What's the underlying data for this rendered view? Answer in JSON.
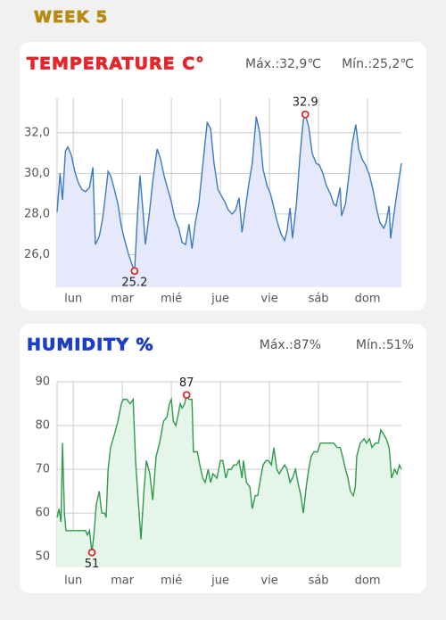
{
  "header": {
    "title": "WEEK 5"
  },
  "chart_data": [
    {
      "type": "line",
      "title": "Temperature C°",
      "max_label": "Máx.:32,9℃",
      "min_label": "Mín.:25,2℃",
      "x": [
        -0.33,
        -0.27,
        -0.22,
        -0.16,
        -0.11,
        -0.04,
        0.04,
        0.11,
        0.18,
        0.25,
        0.33,
        0.4,
        0.45,
        0.53,
        0.6,
        0.65,
        0.71,
        0.76,
        0.84,
        0.91,
        0.98,
        1.05,
        1.13,
        1.2,
        1.25,
        1.31,
        1.36,
        1.42,
        1.47,
        1.55,
        1.62,
        1.71,
        1.78,
        1.85,
        1.93,
        2,
        2.07,
        2.15,
        2.22,
        2.29,
        2.36,
        2.42,
        2.49,
        2.56,
        2.64,
        2.73,
        2.8,
        2.87,
        2.95,
        3.02,
        3.09,
        3.16,
        3.24,
        3.31,
        3.38,
        3.44,
        3.51,
        3.58,
        3.65,
        3.73,
        3.8,
        3.87,
        3.95,
        4.02,
        4.09,
        4.16,
        4.24,
        4.31,
        4.36,
        4.42,
        4.47,
        4.55,
        4.62,
        4.69,
        4.73,
        4.8,
        4.87,
        4.95,
        5.02,
        5.09,
        5.16,
        5.24,
        5.31,
        5.36,
        5.44,
        5.47,
        5.55,
        5.62,
        5.69,
        5.76,
        5.82,
        5.89,
        5.96,
        6.04,
        6.11,
        6.18,
        6.25,
        6.33,
        6.38,
        6.44,
        6.47,
        6.55,
        6.62,
        6.69
      ],
      "series": [
        {
          "color": "#3b7cc0",
          "fill": "#e6e8fb",
          "values": [
            28.1,
            30.0,
            28.7,
            31.1,
            31.3,
            30.9,
            30.0,
            29.5,
            29.2,
            29.1,
            29.3,
            30.3,
            26.5,
            26.9,
            27.8,
            28.8,
            30.1,
            29.9,
            29.2,
            28.5,
            27.4,
            26.7,
            26.0,
            25.5,
            25.2,
            28.0,
            29.9,
            28.2,
            26.5,
            28.0,
            29.6,
            31.2,
            30.7,
            29.9,
            29.2,
            28.6,
            27.8,
            27.3,
            26.6,
            26.5,
            27.5,
            26.3,
            27.6,
            28.5,
            30.4,
            32.5,
            32.2,
            30.5,
            29.2,
            28.9,
            28.6,
            28.2,
            28.0,
            28.2,
            28.8,
            27.1,
            28.3,
            29.5,
            30.5,
            32.8,
            32.0,
            30.2,
            29.4,
            29.0,
            28.3,
            27.6,
            27.0,
            26.7,
            27.2,
            28.3,
            26.8,
            28.5,
            30.8,
            32.6,
            32.9,
            32.3,
            31.0,
            30.5,
            30.4,
            30.0,
            29.4,
            29.0,
            28.5,
            28.4,
            29.3,
            27.9,
            28.5,
            29.9,
            31.5,
            32.4,
            31.2,
            30.7,
            30.4,
            29.9,
            29.2,
            28.3,
            27.6,
            27.3,
            27.6,
            28.4,
            26.8,
            28.2,
            29.4,
            30.5
          ]
        }
      ],
      "xlim": [
        -0.33,
        6.69
      ],
      "xticks": [
        {
          "value": 0,
          "label": "lun"
        },
        {
          "value": 1,
          "label": "mar"
        },
        {
          "value": 2,
          "label": "mié"
        },
        {
          "value": 3,
          "label": "jue"
        },
        {
          "value": 4,
          "label": "vie"
        },
        {
          "value": 5,
          "label": "sáb"
        },
        {
          "value": 6,
          "label": "dom"
        }
      ],
      "ylim": [
        24.4,
        33.7
      ],
      "yticks": [
        {
          "value": 26,
          "label": "26,0"
        },
        {
          "value": 28,
          "label": "28,0"
        },
        {
          "value": 30,
          "label": "30,0"
        },
        {
          "value": 32,
          "label": "32,0"
        }
      ],
      "grid": true,
      "title_color": "#e3262b"
    },
    {
      "type": "line",
      "title": "Humidity %",
      "max_label": "Máx.:87%",
      "min_label": "Mín.:51%",
      "x": [
        -0.33,
        -0.29,
        -0.25,
        -0.22,
        -0.18,
        -0.15,
        -0.04,
        0.11,
        0.25,
        0.29,
        0.33,
        0.38,
        0.42,
        0.47,
        0.53,
        0.58,
        0.64,
        0.67,
        0.71,
        0.76,
        0.84,
        0.91,
        0.98,
        1.02,
        1.09,
        1.16,
        1.22,
        1.27,
        1.33,
        1.38,
        1.44,
        1.49,
        1.56,
        1.62,
        1.69,
        1.76,
        1.84,
        1.91,
        1.96,
        2,
        2.04,
        2.09,
        2.13,
        2.18,
        2.22,
        2.27,
        2.31,
        2.36,
        2.42,
        2.45,
        2.53,
        2.58,
        2.64,
        2.69,
        2.75,
        2.8,
        2.85,
        2.93,
        3,
        3.05,
        3.11,
        3.16,
        3.22,
        3.27,
        3.33,
        3.38,
        3.44,
        3.47,
        3.53,
        3.6,
        3.65,
        3.71,
        3.76,
        3.82,
        3.87,
        3.93,
        3.98,
        4.04,
        4.09,
        4.15,
        4.2,
        4.25,
        4.31,
        4.36,
        4.42,
        4.47,
        4.53,
        4.58,
        4.64,
        4.69,
        4.75,
        4.8,
        4.85,
        4.91,
        4.98,
        5.04,
        5.09,
        5.16,
        5.24,
        5.31,
        5.38,
        5.44,
        5.49,
        5.55,
        5.6,
        5.65,
        5.71,
        5.75,
        5.78,
        5.85,
        5.93,
        5.98,
        6.04,
        6.09,
        6.16,
        6.22,
        6.27,
        6.33,
        6.38,
        6.44,
        6.49,
        6.55,
        6.6,
        6.65,
        6.69
      ],
      "series": [
        {
          "color": "#2f9a4c",
          "fill": "#e5f5ea",
          "values": [
            59,
            61,
            58,
            76,
            60,
            56,
            56,
            56,
            56,
            55,
            56,
            51,
            55,
            62,
            65,
            60,
            60,
            59,
            70,
            75,
            78,
            81,
            85,
            86,
            86,
            85,
            86,
            72,
            62,
            54,
            65,
            72,
            69,
            63,
            73,
            76,
            81,
            82,
            85,
            86,
            81,
            80,
            82,
            85,
            84,
            85,
            87,
            86,
            86,
            74,
            74,
            71,
            68,
            67,
            70,
            67,
            69,
            68,
            72,
            72,
            68,
            70,
            70,
            71,
            71,
            72,
            68,
            72,
            67,
            66,
            61,
            64,
            64,
            68,
            71,
            72,
            72,
            71,
            75,
            70,
            69,
            70,
            71,
            70,
            67,
            68,
            70,
            67,
            64,
            60,
            66,
            70,
            73,
            74,
            74,
            76,
            76,
            76,
            76,
            76,
            75,
            75,
            73,
            70,
            68,
            65,
            64,
            66,
            73,
            76,
            77,
            76,
            77,
            75,
            76,
            76,
            79,
            78,
            77,
            75,
            68,
            70,
            69,
            71,
            70
          ]
        }
      ],
      "xlim": [
        -0.33,
        6.69
      ],
      "xticks": [
        {
          "value": 0,
          "label": "lun"
        },
        {
          "value": 1,
          "label": "mar"
        },
        {
          "value": 2,
          "label": "mié"
        },
        {
          "value": 3,
          "label": "jue"
        },
        {
          "value": 4,
          "label": "vie"
        },
        {
          "value": 5,
          "label": "sáb"
        },
        {
          "value": 6,
          "label": "dom"
        }
      ],
      "ylim": [
        47.6,
        90
      ],
      "yticks": [
        50,
        60,
        70,
        80,
        90
      ],
      "grid": true,
      "title_color": "#1d3fc4"
    }
  ]
}
